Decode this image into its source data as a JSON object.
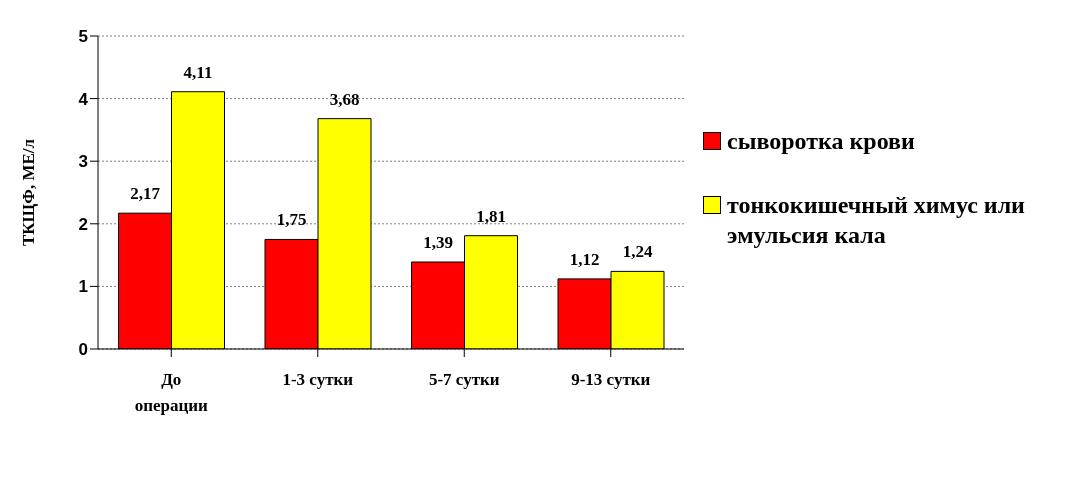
{
  "chart_data": {
    "type": "bar",
    "ylabel": "ТКЩФ, МЕ/л",
    "categories": [
      "До операции",
      "1-3 сутки",
      "5-7 сутки",
      "9-13 сутки"
    ],
    "series": [
      {
        "name": "сыворотка крови",
        "color": "#ff0000",
        "values": [
          2.17,
          1.75,
          1.39,
          1.12
        ],
        "value_labels": [
          "2,17",
          "1,75",
          "1,39",
          "1,12"
        ]
      },
      {
        "name": "тонкокишечный химус или эмульсия кала",
        "color": "#ffff00",
        "values": [
          4.11,
          3.68,
          1.81,
          1.24
        ],
        "value_labels": [
          "4,11",
          "3,68",
          "1,81",
          "1,24"
        ]
      }
    ],
    "ylim": [
      0,
      5
    ],
    "yticks": [
      0,
      1,
      2,
      3,
      4,
      5
    ],
    "grid": "y",
    "legend": "right"
  }
}
